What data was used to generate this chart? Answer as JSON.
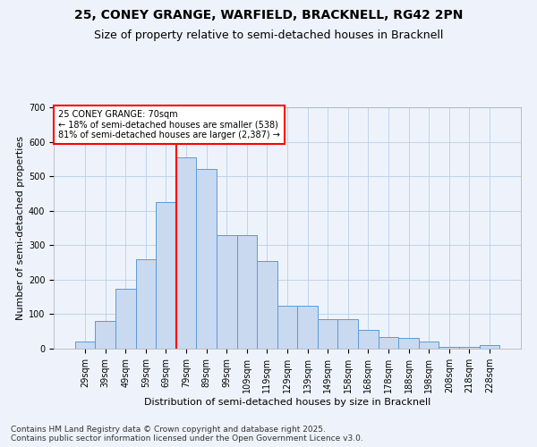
{
  "title_line1": "25, CONEY GRANGE, WARFIELD, BRACKNELL, RG42 2PN",
  "title_line2": "Size of property relative to semi-detached houses in Bracknell",
  "xlabel": "Distribution of semi-detached houses by size in Bracknell",
  "ylabel": "Number of semi-detached properties",
  "footnote": "Contains HM Land Registry data © Crown copyright and database right 2025.\nContains public sector information licensed under the Open Government Licence v3.0.",
  "categories": [
    "29sqm",
    "39sqm",
    "49sqm",
    "59sqm",
    "69sqm",
    "79sqm",
    "89sqm",
    "99sqm",
    "109sqm",
    "119sqm",
    "129sqm",
    "139sqm",
    "149sqm",
    "158sqm",
    "168sqm",
    "178sqm",
    "188sqm",
    "198sqm",
    "208sqm",
    "218sqm",
    "228sqm"
  ],
  "values": [
    20,
    80,
    175,
    260,
    425,
    555,
    520,
    330,
    330,
    255,
    125,
    125,
    85,
    85,
    55,
    35,
    30,
    20,
    5,
    5,
    10
  ],
  "bar_color": "#c9d9f0",
  "bar_edge_color": "#5b9bd5",
  "vline_color": "red",
  "vline_x_index": 4.5,
  "annotation_text": "25 CONEY GRANGE: 70sqm\n← 18% of semi-detached houses are smaller (538)\n81% of semi-detached houses are larger (2,387) →",
  "annotation_box_color": "red",
  "ylim": [
    0,
    700
  ],
  "yticks": [
    0,
    100,
    200,
    300,
    400,
    500,
    600,
    700
  ],
  "grid_color": "#b8cfe8",
  "bg_color": "#eef3fb",
  "title_fontsize": 10,
  "subtitle_fontsize": 9,
  "label_fontsize": 8,
  "tick_fontsize": 7,
  "footnote_fontsize": 6.5
}
